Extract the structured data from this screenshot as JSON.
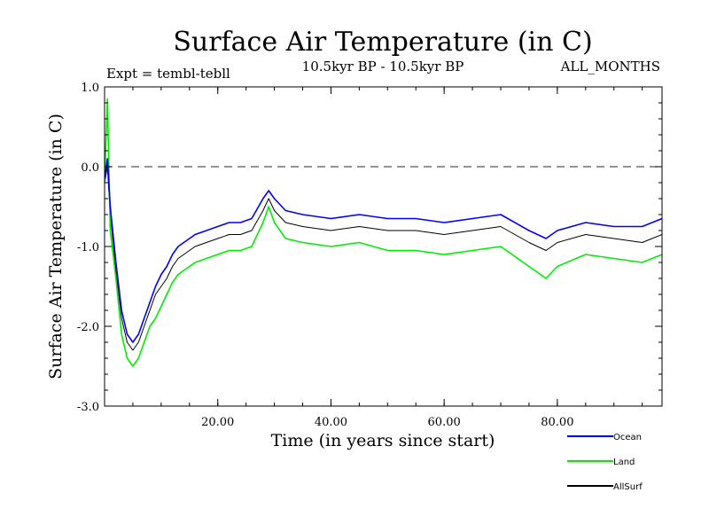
{
  "chart_data": {
    "type": "line",
    "title": "Surface Air Temperature (in C)",
    "subtitle_left": "Expt = tembl-tebll",
    "subtitle_center": "10.5kyr BP - 10.5kyr BP",
    "subtitle_right": "ALL_MONTHS",
    "xlabel": "Time (in years since start)",
    "ylabel": "Surface Air Temperature (in C)",
    "xlim": [
      0,
      98.5
    ],
    "ylim": [
      -3.0,
      1.0
    ],
    "x_ticks": [
      20,
      40,
      60,
      80
    ],
    "x_tick_labels": [
      "20.00",
      "40.00",
      "60.00",
      "80.00"
    ],
    "y_ticks": [
      1.0,
      0.0,
      -1.0,
      -2.0,
      -3.0
    ],
    "y_tick_labels": [
      "1.0",
      "0.0",
      "-1.0",
      "-2.0",
      "-3.0"
    ],
    "reference_line": {
      "y": 0.0,
      "style": "dashed"
    },
    "legend_position": "bottom-right",
    "series": [
      {
        "name": "Ocean",
        "color": "#0000ff",
        "points": [
          [
            0.0,
            -0.15
          ],
          [
            0.5,
            0.1
          ],
          [
            1.0,
            -0.5
          ],
          [
            2.0,
            -1.2
          ],
          [
            3.0,
            -1.8
          ],
          [
            4.0,
            -2.1
          ],
          [
            5.0,
            -2.2
          ],
          [
            6.0,
            -2.1
          ],
          [
            7.0,
            -1.9
          ],
          [
            8.0,
            -1.7
          ],
          [
            9.0,
            -1.5
          ],
          [
            10.0,
            -1.35
          ],
          [
            11.0,
            -1.25
          ],
          [
            12.0,
            -1.1
          ],
          [
            13.0,
            -1.0
          ],
          [
            14.0,
            -0.95
          ],
          [
            15.0,
            -0.9
          ],
          [
            16.0,
            -0.85
          ],
          [
            18.0,
            -0.8
          ],
          [
            20.0,
            -0.75
          ],
          [
            22.0,
            -0.7
          ],
          [
            24.0,
            -0.7
          ],
          [
            26.0,
            -0.65
          ],
          [
            28.0,
            -0.4
          ],
          [
            29.0,
            -0.3
          ],
          [
            30.0,
            -0.4
          ],
          [
            32.0,
            -0.55
          ],
          [
            35.0,
            -0.6
          ],
          [
            40.0,
            -0.65
          ],
          [
            45.0,
            -0.6
          ],
          [
            50.0,
            -0.65
          ],
          [
            55.0,
            -0.65
          ],
          [
            60.0,
            -0.7
          ],
          [
            65.0,
            -0.65
          ],
          [
            70.0,
            -0.6
          ],
          [
            75.0,
            -0.8
          ],
          [
            78.0,
            -0.9
          ],
          [
            80.0,
            -0.8
          ],
          [
            85.0,
            -0.7
          ],
          [
            90.0,
            -0.75
          ],
          [
            95.0,
            -0.75
          ],
          [
            98.5,
            -0.65
          ]
        ]
      },
      {
        "name": "Land",
        "color": "#00ee00",
        "points": [
          [
            0.0,
            -0.2
          ],
          [
            0.5,
            0.85
          ],
          [
            1.0,
            -0.8
          ],
          [
            2.0,
            -1.4
          ],
          [
            3.0,
            -2.1
          ],
          [
            4.0,
            -2.4
          ],
          [
            5.0,
            -2.5
          ],
          [
            6.0,
            -2.4
          ],
          [
            7.0,
            -2.2
          ],
          [
            8.0,
            -2.0
          ],
          [
            9.0,
            -1.9
          ],
          [
            10.0,
            -1.75
          ],
          [
            11.0,
            -1.6
          ],
          [
            12.0,
            -1.45
          ],
          [
            13.0,
            -1.35
          ],
          [
            14.0,
            -1.3
          ],
          [
            15.0,
            -1.25
          ],
          [
            16.0,
            -1.2
          ],
          [
            18.0,
            -1.15
          ],
          [
            20.0,
            -1.1
          ],
          [
            22.0,
            -1.05
          ],
          [
            24.0,
            -1.05
          ],
          [
            26.0,
            -1.0
          ],
          [
            28.0,
            -0.7
          ],
          [
            29.0,
            -0.5
          ],
          [
            30.0,
            -0.7
          ],
          [
            32.0,
            -0.9
          ],
          [
            35.0,
            -0.95
          ],
          [
            40.0,
            -1.0
          ],
          [
            45.0,
            -0.95
          ],
          [
            50.0,
            -1.05
          ],
          [
            55.0,
            -1.05
          ],
          [
            60.0,
            -1.1
          ],
          [
            65.0,
            -1.05
          ],
          [
            70.0,
            -1.0
          ],
          [
            75.0,
            -1.25
          ],
          [
            78.0,
            -1.4
          ],
          [
            80.0,
            -1.25
          ],
          [
            85.0,
            -1.1
          ],
          [
            90.0,
            -1.15
          ],
          [
            95.0,
            -1.2
          ],
          [
            98.5,
            -1.1
          ]
        ]
      },
      {
        "name": "AllSurf",
        "color": "#000000",
        "points": [
          [
            0.0,
            -0.2
          ],
          [
            0.5,
            0.0
          ],
          [
            1.0,
            -0.6
          ],
          [
            2.0,
            -1.3
          ],
          [
            3.0,
            -1.9
          ],
          [
            4.0,
            -2.2
          ],
          [
            5.0,
            -2.3
          ],
          [
            6.0,
            -2.2
          ],
          [
            7.0,
            -2.0
          ],
          [
            8.0,
            -1.8
          ],
          [
            9.0,
            -1.6
          ],
          [
            10.0,
            -1.5
          ],
          [
            11.0,
            -1.4
          ],
          [
            12.0,
            -1.25
          ],
          [
            13.0,
            -1.15
          ],
          [
            14.0,
            -1.1
          ],
          [
            15.0,
            -1.05
          ],
          [
            16.0,
            -1.0
          ],
          [
            18.0,
            -0.95
          ],
          [
            20.0,
            -0.9
          ],
          [
            22.0,
            -0.85
          ],
          [
            24.0,
            -0.85
          ],
          [
            26.0,
            -0.8
          ],
          [
            28.0,
            -0.55
          ],
          [
            29.0,
            -0.4
          ],
          [
            30.0,
            -0.55
          ],
          [
            32.0,
            -0.7
          ],
          [
            35.0,
            -0.75
          ],
          [
            40.0,
            -0.8
          ],
          [
            45.0,
            -0.75
          ],
          [
            50.0,
            -0.8
          ],
          [
            55.0,
            -0.8
          ],
          [
            60.0,
            -0.85
          ],
          [
            65.0,
            -0.8
          ],
          [
            70.0,
            -0.75
          ],
          [
            75.0,
            -0.95
          ],
          [
            78.0,
            -1.05
          ],
          [
            80.0,
            -0.95
          ],
          [
            85.0,
            -0.85
          ],
          [
            90.0,
            -0.9
          ],
          [
            95.0,
            -0.95
          ],
          [
            98.5,
            -0.85
          ]
        ]
      }
    ]
  }
}
